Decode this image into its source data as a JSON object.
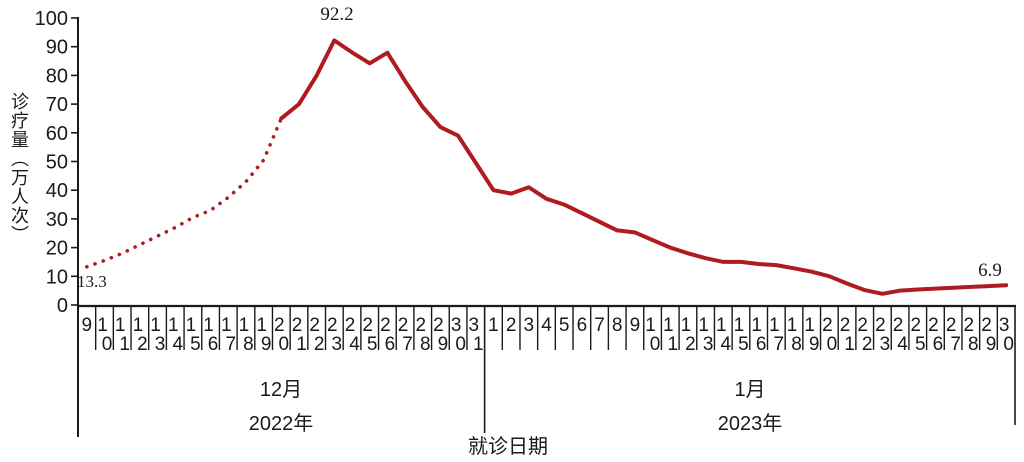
{
  "chart_data": {
    "type": "line",
    "title": "",
    "ylabel": "诊疗量（万人次）",
    "xlabel": "就诊日期",
    "ylim": [
      0,
      100
    ],
    "y_ticks": [
      0,
      10,
      20,
      30,
      40,
      50,
      60,
      70,
      80,
      90,
      100
    ],
    "grid": false,
    "legend": "none",
    "line_color": "#ae1c20",
    "axis_color": "#1a1a1a",
    "categories": [
      "9",
      "10",
      "11",
      "12",
      "13",
      "14",
      "15",
      "16",
      "17",
      "18",
      "19",
      "20",
      "21",
      "22",
      "23",
      "24",
      "25",
      "26",
      "27",
      "28",
      "29",
      "30",
      "31",
      "1",
      "2",
      "3",
      "4",
      "5",
      "6",
      "7",
      "8",
      "9",
      "10",
      "11",
      "12",
      "13",
      "14",
      "15",
      "16",
      "17",
      "18",
      "19",
      "20",
      "21",
      "22",
      "23",
      "24",
      "25",
      "26",
      "27",
      "28",
      "29",
      "30"
    ],
    "values": [
      13.3,
      15.5,
      18,
      21,
      24,
      27,
      30.5,
      33,
      37.5,
      43,
      50.5,
      65,
      70,
      80,
      92.2,
      88,
      84.2,
      87.9,
      78,
      69,
      62,
      59,
      49.5,
      40,
      38.8,
      41,
      37,
      35,
      32,
      29,
      26,
      25.3,
      22.6,
      20,
      18,
      16.3,
      15,
      15,
      14.3,
      13.9,
      12.8,
      11.6,
      10,
      7.5,
      5.2,
      3.9,
      5,
      5.4,
      5.7,
      6,
      6.3,
      6.6,
      6.9
    ],
    "dotted_until_index": 11,
    "series": [
      {
        "name": "诊疗量",
        "style": "dotted-then-solid"
      }
    ],
    "groups": [
      {
        "month": "12月",
        "year": "2022年",
        "start_index": 0,
        "end_index": 22
      },
      {
        "month": "1月",
        "year": "2023年",
        "start_index": 23,
        "end_index": 52
      }
    ],
    "annotations": [
      {
        "label": "13.3",
        "index": 0,
        "position": "below-start"
      },
      {
        "label": "92.2",
        "index": 14,
        "position": "above-peak"
      },
      {
        "label": "6.9",
        "index": 52,
        "position": "above-end"
      }
    ]
  }
}
